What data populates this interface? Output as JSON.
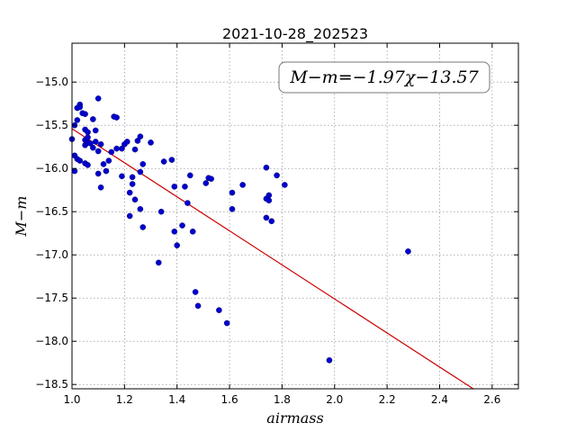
{
  "chart_data": {
    "type": "scatter",
    "title": "2021-10-28_202523",
    "xlabel": "airmass",
    "ylabel": "M−m",
    "xlim": [
      1.0,
      2.7
    ],
    "ylim": [
      -18.55,
      -14.55
    ],
    "xticks": [
      1.0,
      1.2,
      1.4,
      1.6,
      1.8,
      2.0,
      2.2,
      2.4,
      2.6
    ],
    "xtick_labels": [
      "1.0",
      "1.2",
      "1.4",
      "1.6",
      "1.8",
      "2.0",
      "2.2",
      "2.4",
      "2.6"
    ],
    "yticks": [
      -15.0,
      -15.5,
      -16.0,
      -16.5,
      -17.0,
      -17.5,
      -18.0,
      -18.5
    ],
    "ytick_labels": [
      "−15.0",
      "−15.5",
      "−16.0",
      "−16.5",
      "−17.0",
      "−17.5",
      "−18.0",
      "−18.5"
    ],
    "grid": true,
    "annotation": "M−m=−1.97χ−13.57",
    "fit": {
      "slope": -1.97,
      "intercept": -13.57,
      "x_range": [
        1.0,
        2.53
      ]
    },
    "colors": {
      "points": "#0000cc",
      "fit_line": "#cc0000"
    },
    "points": [
      [
        1.0,
        -15.66
      ],
      [
        1.01,
        -15.5
      ],
      [
        1.01,
        -16.03
      ],
      [
        1.01,
        -15.85
      ],
      [
        1.02,
        -15.89
      ],
      [
        1.02,
        -15.44
      ],
      [
        1.02,
        -15.3
      ],
      [
        1.03,
        -15.26
      ],
      [
        1.03,
        -15.29
      ],
      [
        1.03,
        -15.91
      ],
      [
        1.04,
        -15.36
      ],
      [
        1.05,
        -15.37
      ],
      [
        1.05,
        -15.55
      ],
      [
        1.05,
        -15.73
      ],
      [
        1.05,
        -15.94
      ],
      [
        1.05,
        -15.67
      ],
      [
        1.06,
        -15.58
      ],
      [
        1.06,
        -15.64
      ],
      [
        1.06,
        -15.7
      ],
      [
        1.06,
        -15.96
      ],
      [
        1.07,
        -15.71
      ],
      [
        1.08,
        -15.43
      ],
      [
        1.08,
        -15.76
      ],
      [
        1.09,
        -15.56
      ],
      [
        1.09,
        -15.69
      ],
      [
        1.1,
        -15.19
      ],
      [
        1.1,
        -15.8
      ],
      [
        1.1,
        -16.06
      ],
      [
        1.11,
        -15.72
      ],
      [
        1.11,
        -16.22
      ],
      [
        1.12,
        -15.95
      ],
      [
        1.13,
        -16.03
      ],
      [
        1.14,
        -15.91
      ],
      [
        1.15,
        -15.81
      ],
      [
        1.16,
        -15.4
      ],
      [
        1.17,
        -15.41
      ],
      [
        1.17,
        -15.77
      ],
      [
        1.19,
        -16.09
      ],
      [
        1.19,
        -15.77
      ],
      [
        1.2,
        -15.72
      ],
      [
        1.21,
        -15.69
      ],
      [
        1.22,
        -16.28
      ],
      [
        1.22,
        -16.55
      ],
      [
        1.23,
        -16.18
      ],
      [
        1.23,
        -16.1
      ],
      [
        1.24,
        -15.78
      ],
      [
        1.24,
        -16.36
      ],
      [
        1.25,
        -15.68
      ],
      [
        1.26,
        -15.63
      ],
      [
        1.26,
        -16.47
      ],
      [
        1.26,
        -16.04
      ],
      [
        1.27,
        -15.95
      ],
      [
        1.27,
        -16.68
      ],
      [
        1.3,
        -15.7
      ],
      [
        1.33,
        -17.09
      ],
      [
        1.34,
        -16.5
      ],
      [
        1.35,
        -15.92
      ],
      [
        1.38,
        -15.9
      ],
      [
        1.39,
        -16.21
      ],
      [
        1.39,
        -16.73
      ],
      [
        1.4,
        -16.89
      ],
      [
        1.42,
        -16.66
      ],
      [
        1.43,
        -16.21
      ],
      [
        1.44,
        -16.4
      ],
      [
        1.45,
        -16.08
      ],
      [
        1.46,
        -16.73
      ],
      [
        1.47,
        -17.43
      ],
      [
        1.48,
        -17.59
      ],
      [
        1.51,
        -16.17
      ],
      [
        1.52,
        -16.11
      ],
      [
        1.53,
        -16.12
      ],
      [
        1.56,
        -17.64
      ],
      [
        1.59,
        -17.79
      ],
      [
        1.61,
        -16.47
      ],
      [
        1.61,
        -16.28
      ],
      [
        1.65,
        -16.19
      ],
      [
        1.74,
        -16.57
      ],
      [
        1.74,
        -15.99
      ],
      [
        1.74,
        -16.35
      ],
      [
        1.75,
        -16.31
      ],
      [
        1.75,
        -16.37
      ],
      [
        1.76,
        -16.61
      ],
      [
        1.78,
        -16.08
      ],
      [
        1.81,
        -16.19
      ],
      [
        1.98,
        -18.22
      ],
      [
        2.28,
        -16.96
      ]
    ]
  }
}
